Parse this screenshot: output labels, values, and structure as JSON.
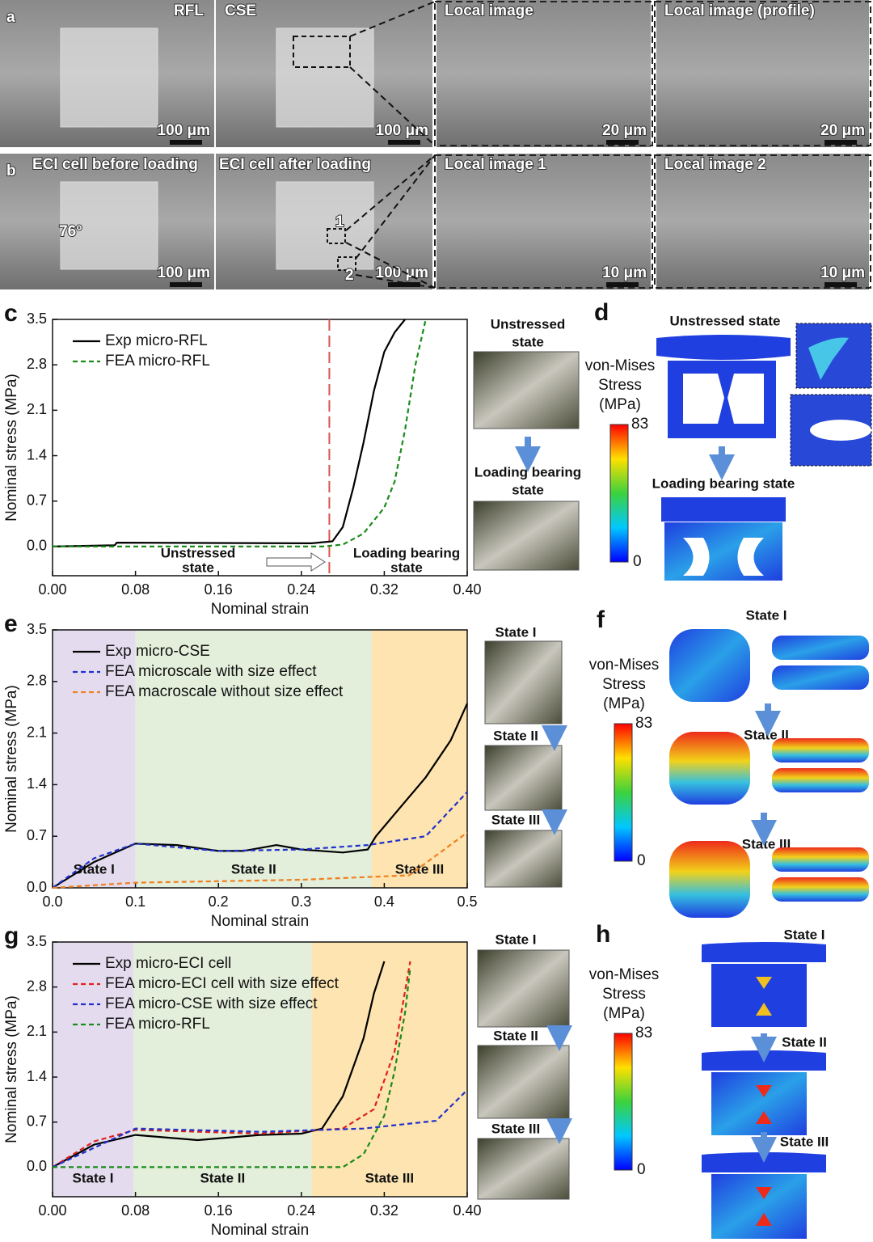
{
  "panel_a": {
    "label": "a",
    "images": [
      {
        "caption": "RFL",
        "scale": "100 μm"
      },
      {
        "caption": "CSE",
        "scale": "100 μm"
      },
      {
        "caption": "Local image",
        "scale": "20 μm"
      },
      {
        "caption": "Local image (profile)",
        "scale": "20 μm"
      }
    ]
  },
  "panel_b": {
    "label": "b",
    "images": [
      {
        "caption": "ECI cell before loading",
        "scale": "100 μm"
      },
      {
        "caption": "ECI cell after loading",
        "scale": "100 μm"
      },
      {
        "caption": "Local image 1",
        "scale": "10 μm"
      },
      {
        "caption": "Local image 2",
        "scale": "10 μm"
      }
    ],
    "angle": "76°",
    "markers": [
      "1",
      "2"
    ]
  },
  "chart_data": [
    {
      "type": "line",
      "label": "c",
      "xlabel": "Nominal strain",
      "ylabel": "Nominal stress (MPa)",
      "xlim": [
        0,
        0.4
      ],
      "xticks": [
        {
          "value": 0,
          "label": "0.00"
        },
        0.08,
        0.16,
        0.24,
        0.32,
        {
          "value": 0.4,
          "label": "0.40"
        }
      ],
      "ylim": [
        -0.45,
        3.5
      ],
      "yticks": [
        {
          "value": 0,
          "label": "0.0"
        },
        0.7,
        1.4,
        2.1,
        2.8,
        3.5
      ],
      "vline": 0.267,
      "annotations": [
        [
          "Unstressed",
          "state"
        ],
        [
          "Loading bearing",
          "state"
        ]
      ],
      "series": [
        {
          "name": "Exp micro-RFL",
          "color": "#000000",
          "dash": false,
          "x": [
            0,
            0.06,
            0.062,
            0.25,
            0.27,
            0.28,
            0.29,
            0.3,
            0.31,
            0.32,
            0.33,
            0.34
          ],
          "values": [
            0,
            0.02,
            0.06,
            0.05,
            0.08,
            0.3,
            0.9,
            1.6,
            2.4,
            3.0,
            3.3,
            3.5
          ]
        },
        {
          "name": "FEA micro-RFL",
          "color": "#1a8a1a",
          "dash": true,
          "x": [
            0,
            0.26,
            0.28,
            0.3,
            0.32,
            0.33,
            0.34,
            0.35,
            0.36
          ],
          "values": [
            0,
            0,
            0.03,
            0.2,
            0.6,
            1.0,
            1.8,
            2.8,
            3.5
          ]
        }
      ]
    },
    {
      "type": "line",
      "label": "e",
      "xlabel": "Nominal strain",
      "ylabel": "Nominal stress (MPa)",
      "xlim": [
        0,
        0.5
      ],
      "xticks": [
        {
          "value": 0,
          "label": "0.0"
        },
        0.1,
        0.2,
        0.3,
        0.4,
        0.5
      ],
      "ylim": [
        0,
        3.5
      ],
      "yticks": [
        {
          "value": 0,
          "label": "0.0"
        },
        0.7,
        1.4,
        2.1,
        2.8,
        3.5
      ],
      "regions": [
        {
          "name": "State I",
          "range": [
            0,
            0.1
          ],
          "color": "#e4dcee"
        },
        {
          "name": "State II",
          "range": [
            0.1,
            0.385
          ],
          "color": "#e3eedb"
        },
        {
          "name": "State III",
          "range": [
            0.385,
            0.5
          ],
          "color": "#fde4b0"
        }
      ],
      "series": [
        {
          "name": "Exp micro-CSE",
          "color": "#000000",
          "dash": false,
          "x": [
            0,
            0.05,
            0.1,
            0.15,
            0.2,
            0.23,
            0.27,
            0.3,
            0.35,
            0.38,
            0.39,
            0.42,
            0.45,
            0.48,
            0.5
          ],
          "values": [
            0,
            0.35,
            0.6,
            0.58,
            0.5,
            0.5,
            0.58,
            0.52,
            0.48,
            0.52,
            0.7,
            1.1,
            1.5,
            2.0,
            2.5
          ]
        },
        {
          "name": "FEA microscale with size effect",
          "color": "#1f2fcc",
          "dash": true,
          "x": [
            0,
            0.05,
            0.1,
            0.2,
            0.3,
            0.38,
            0.45,
            0.5
          ],
          "values": [
            0,
            0.4,
            0.6,
            0.5,
            0.52,
            0.58,
            0.7,
            1.3
          ]
        },
        {
          "name": "FEA macroscale without size effect",
          "color": "#f07f1e",
          "dash": true,
          "x": [
            0,
            0.1,
            0.2,
            0.3,
            0.43,
            0.5
          ],
          "values": [
            0,
            0.07,
            0.09,
            0.11,
            0.17,
            0.75
          ]
        }
      ]
    },
    {
      "type": "line",
      "label": "g",
      "xlabel": "Nominal strain",
      "ylabel": "Nominal stress (MPa)",
      "xlim": [
        0,
        0.4
      ],
      "xticks": [
        {
          "value": 0,
          "label": "0.00"
        },
        0.08,
        0.16,
        0.24,
        0.32,
        {
          "value": 0.4,
          "label": "0.40"
        }
      ],
      "ylim": [
        -0.46,
        3.5
      ],
      "yticks": [
        {
          "value": 0,
          "label": "0.0"
        },
        0.7,
        1.4,
        2.1,
        2.8,
        3.5
      ],
      "regions": [
        {
          "name": "State I",
          "range": [
            0,
            0.078
          ],
          "color": "#e4dcee"
        },
        {
          "name": "State II",
          "range": [
            0.078,
            0.25
          ],
          "color": "#e3eedb"
        },
        {
          "name": "State III",
          "range": [
            0.25,
            0.4
          ],
          "color": "#fde4b0"
        }
      ],
      "series": [
        {
          "name": "Exp micro-ECI cell",
          "color": "#000000",
          "dash": false,
          "x": [
            0,
            0.04,
            0.08,
            0.14,
            0.2,
            0.24,
            0.26,
            0.28,
            0.3,
            0.31,
            0.32
          ],
          "values": [
            0,
            0.35,
            0.5,
            0.42,
            0.5,
            0.52,
            0.6,
            1.1,
            2.0,
            2.7,
            3.2
          ]
        },
        {
          "name": "FEA micro-ECI cell with size effect",
          "color": "#e0201f",
          "dash": true,
          "x": [
            0,
            0.04,
            0.08,
            0.2,
            0.28,
            0.31,
            0.33,
            0.345
          ],
          "values": [
            0,
            0.4,
            0.58,
            0.52,
            0.6,
            0.9,
            1.8,
            3.2
          ]
        },
        {
          "name": "FEA micro-CSE with size effect",
          "color": "#1f2fcc",
          "dash": true,
          "x": [
            0,
            0.08,
            0.2,
            0.3,
            0.37,
            0.4
          ],
          "values": [
            0,
            0.6,
            0.55,
            0.6,
            0.72,
            1.2
          ]
        },
        {
          "name": "FEA micro-RFL",
          "color": "#1a8a1a",
          "dash": true,
          "x": [
            0,
            0.28,
            0.3,
            0.32,
            0.33,
            0.34,
            0.345
          ],
          "values": [
            0,
            0,
            0.2,
            0.8,
            1.5,
            2.4,
            3.1
          ]
        }
      ]
    }
  ],
  "side_c": {
    "photos": [
      [
        "Unstressed",
        "state"
      ],
      [
        "Loading bearing",
        "state"
      ]
    ]
  },
  "side_e": {
    "photos": [
      "State I",
      "State II",
      "State III"
    ]
  },
  "side_g": {
    "photos": [
      "State I",
      "State II",
      "State III"
    ]
  },
  "panel_d": {
    "label": "d",
    "states": [
      "Unstressed state",
      "Loading bearing state"
    ],
    "colorbar": {
      "title": [
        "von-Mises",
        "Stress",
        "(MPa)"
      ],
      "max": 83,
      "min": 0
    }
  },
  "panel_f": {
    "label": "f",
    "states": [
      "State I",
      "State II",
      "State III"
    ],
    "colorbar": {
      "title": [
        "von-Mises",
        "Stress",
        "(MPa)"
      ],
      "max": 83,
      "min": 0
    }
  },
  "panel_h": {
    "label": "h",
    "states": [
      "State I",
      "State II",
      "State III"
    ],
    "colorbar": {
      "title": [
        "von-Mises",
        "Stress",
        "(MPa)"
      ],
      "max": 83,
      "min": 0
    }
  }
}
